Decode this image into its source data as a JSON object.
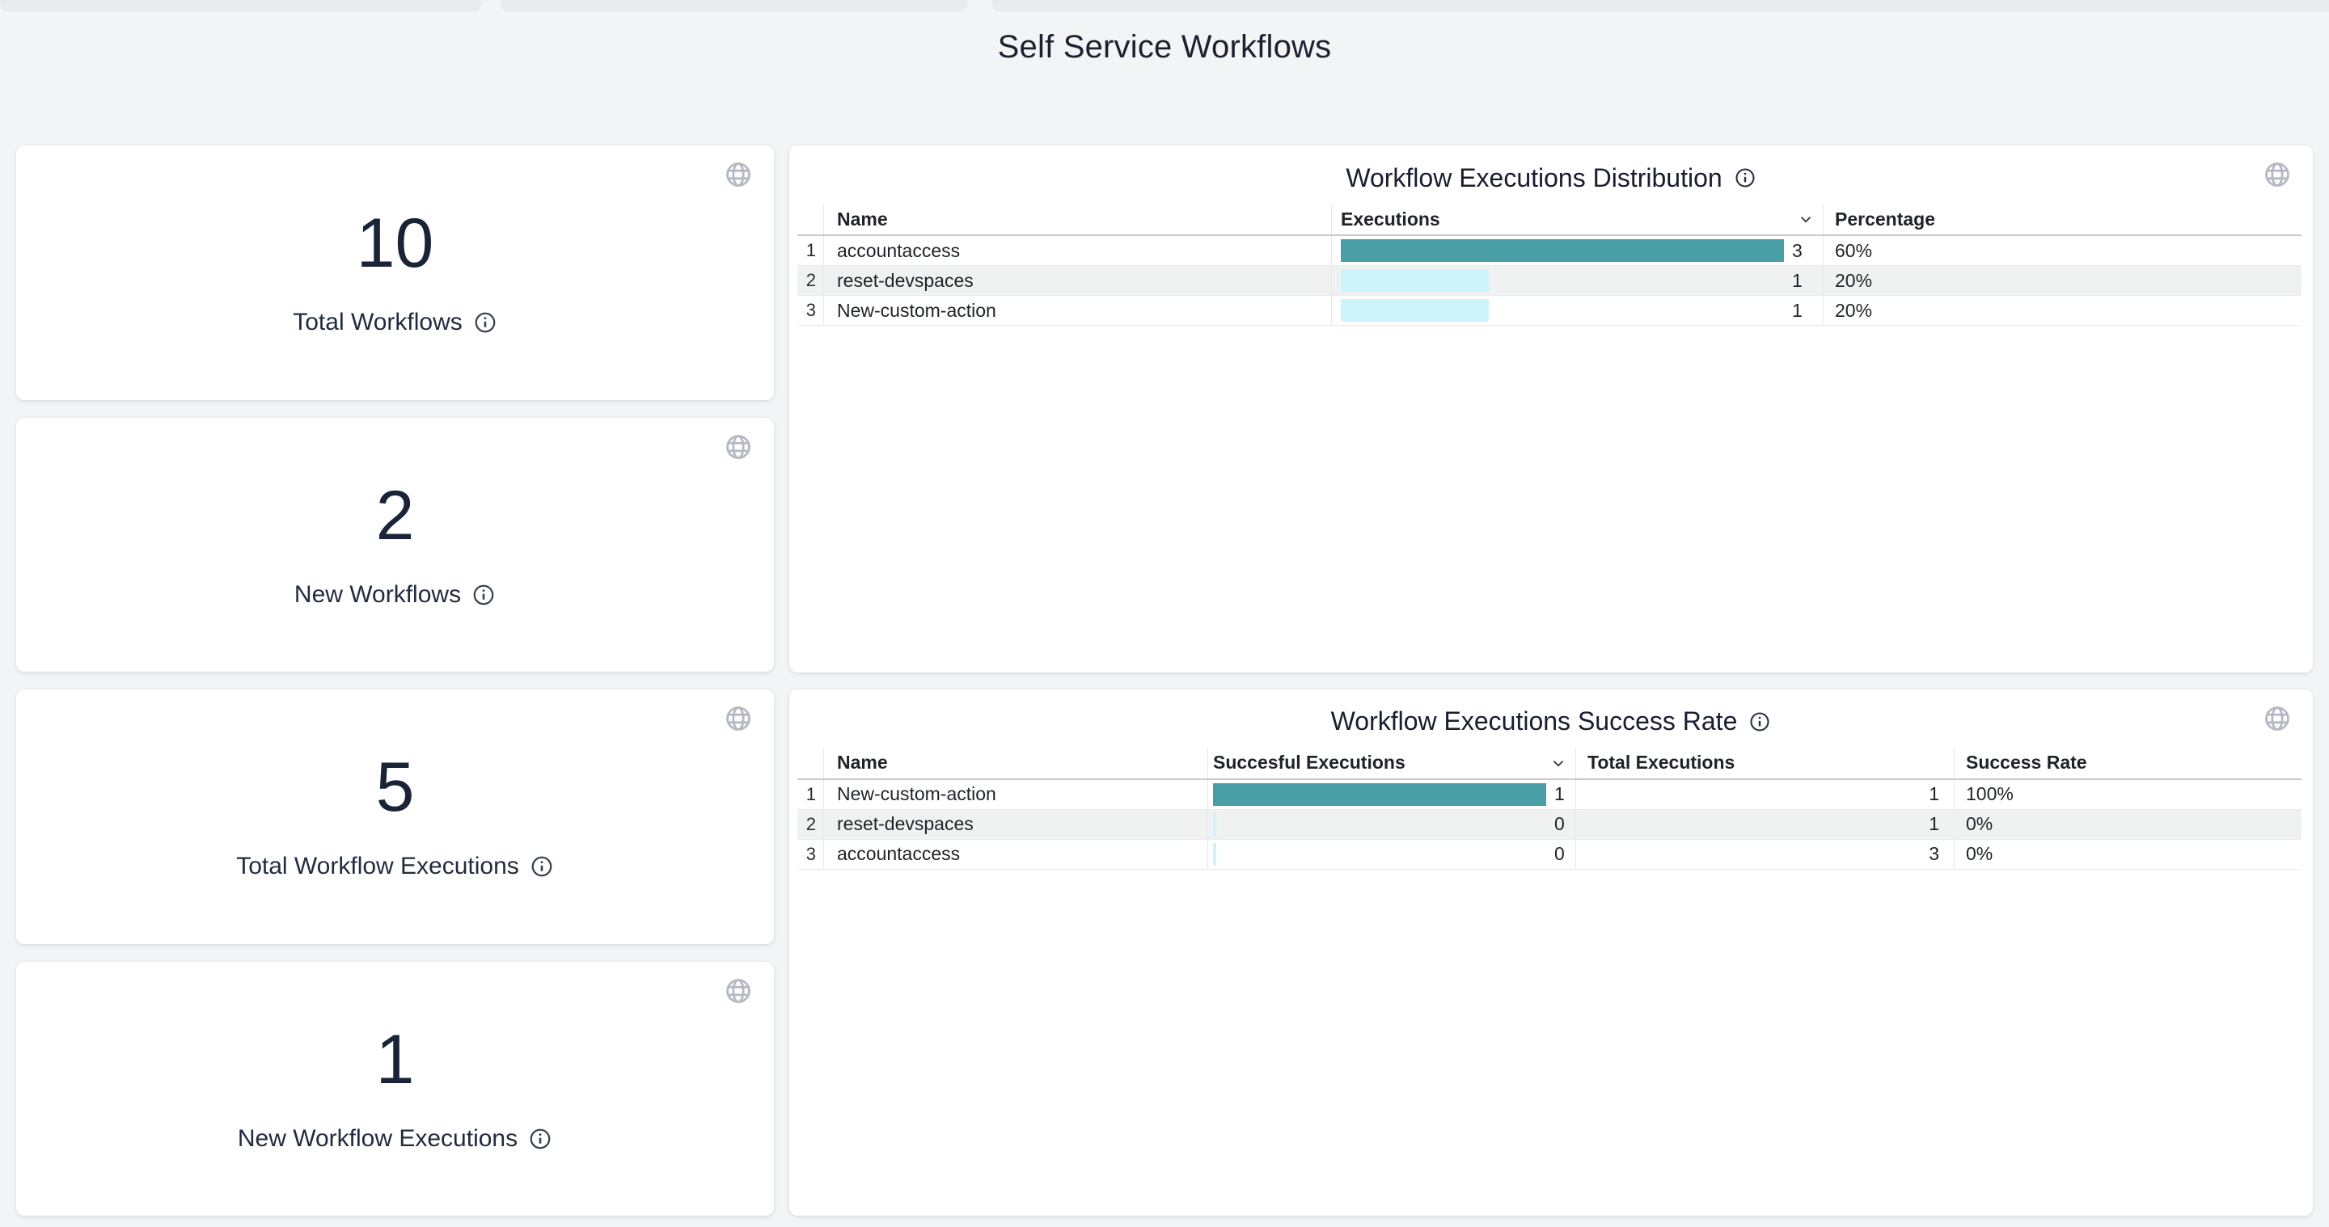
{
  "page": {
    "title": "Self Service Workflows"
  },
  "colors": {
    "bar_max": "#4a9fa7",
    "bar_low": "#cdf4fb",
    "accent_dark_navy": "#1b2437",
    "page_background": "#f3f4f6",
    "stripe_row": "#f0f1f1",
    "globe_icon": "#b4b9c3"
  },
  "stat_cards": [
    {
      "value": "10",
      "label": "Total Workflows"
    },
    {
      "value": "2",
      "label": "New Workflows"
    },
    {
      "value": "5",
      "label": "Total Workflow Executions"
    },
    {
      "value": "1",
      "label": "New Workflow Executions"
    }
  ],
  "panels": [
    {
      "title": "Workflow Executions Distribution",
      "columns": [
        "Name",
        "Executions",
        "Percentage"
      ],
      "max_value": 3,
      "rows": [
        {
          "num": "1",
          "name": "accountaccess",
          "value": 3,
          "value_label": "3",
          "percentage": "60%",
          "bar_color": "bar_max"
        },
        {
          "num": "2",
          "name": "reset-devspaces",
          "value": 1,
          "value_label": "1",
          "percentage": "20%",
          "bar_color": "bar_low"
        },
        {
          "num": "3",
          "name": "New-custom-action",
          "value": 1,
          "value_label": "1",
          "percentage": "20%",
          "bar_color": "bar_low"
        }
      ]
    },
    {
      "title": "Workflow Executions Success Rate",
      "columns": [
        "Name",
        "Succesful Executions",
        "Total Executions",
        "Success Rate"
      ],
      "max_value": 1,
      "rows": [
        {
          "num": "1",
          "name": "New-custom-action",
          "value": 1,
          "value_label": "1",
          "total": "1",
          "rate": "100%",
          "bar_color": "bar_max"
        },
        {
          "num": "2",
          "name": "reset-devspaces",
          "value": 0,
          "value_label": "0",
          "total": "1",
          "rate": "0%",
          "bar_color": "bar_low"
        },
        {
          "num": "3",
          "name": "accountaccess",
          "value": 0,
          "value_label": "0",
          "total": "3",
          "rate": "0%",
          "bar_color": "bar_low"
        }
      ]
    }
  ],
  "chart_data": [
    {
      "type": "bar",
      "title": "Workflow Executions Distribution",
      "categories": [
        "accountaccess",
        "reset-devspaces",
        "New-custom-action"
      ],
      "values": [
        3,
        1,
        1
      ],
      "labels": [
        "60%",
        "20%",
        "20%"
      ],
      "xlabel": "Executions",
      "xlim": [
        0,
        3
      ]
    },
    {
      "type": "bar",
      "title": "Workflow Executions Success Rate",
      "categories": [
        "New-custom-action",
        "reset-devspaces",
        "accountaccess"
      ],
      "series": [
        {
          "name": "Succesful Executions",
          "values": [
            1,
            0,
            0
          ]
        },
        {
          "name": "Total Executions",
          "values": [
            1,
            1,
            3
          ]
        }
      ],
      "labels": [
        "100%",
        "0%",
        "0%"
      ],
      "xlim": [
        0,
        1
      ]
    }
  ]
}
